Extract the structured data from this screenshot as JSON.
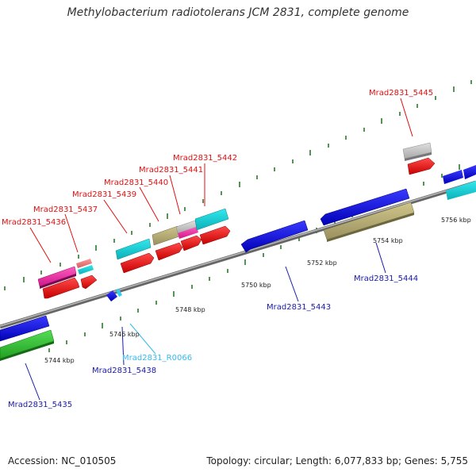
{
  "title": "Methylobacterium radiotolerans JCM 2831, complete genome",
  "footer": {
    "accession": "Accession: NC_010505",
    "topology": "Topology: circular; Length: 6,077,833 bp; Genes: 5,755"
  },
  "ticks": [
    "5744 kbp",
    "5746 kbp",
    "5748 kbp",
    "5750 kbp",
    "5752 kbp",
    "5754 kbp",
    "5756 kbp"
  ],
  "colors": {
    "backbone": "#888888",
    "tick": "#2a7a2a",
    "label_forward": "#dd1111",
    "label_reverse": "#1a1aa8",
    "label_rna": "#33bbee"
  },
  "labels": [
    "Mrad2831_5436",
    "Mrad2831_5437",
    "Mrad2831_5439",
    "Mrad2831_5440",
    "Mrad2831_5441",
    "Mrad2831_5442",
    "Mrad2831_5445",
    "Mrad2831_5443",
    "Mrad2831_5444",
    "Mrad2831_R0066",
    "Mrad2831_5438",
    "Mrad2831_5435"
  ]
}
